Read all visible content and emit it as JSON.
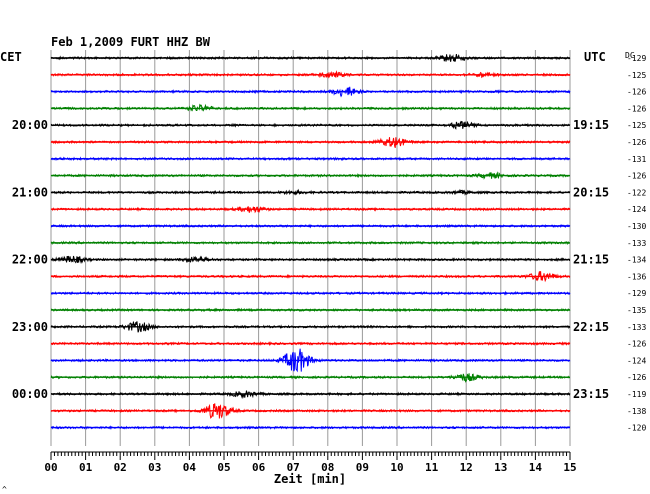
{
  "header": {
    "title": "Feb 1,2009   FURT HHZ BW",
    "left_zone": "CET",
    "right_zone": "UTC",
    "dc_label": "DC"
  },
  "footer": {
    "xlabel": "Zeit [min]",
    "corner_mark": "^"
  },
  "chart_data": {
    "type": "line",
    "title": "Feb 1,2009   FURT HHZ BW",
    "xlabel": "Zeit [min]",
    "xlim": [
      0,
      15
    ],
    "x_ticks": [
      "00",
      "01",
      "02",
      "03",
      "04",
      "05",
      "06",
      "07",
      "08",
      "09",
      "10",
      "11",
      "12",
      "13",
      "14",
      "15"
    ],
    "grid": true,
    "trace_colors": [
      "#000000",
      "#ff0000",
      "#0000ff",
      "#008000"
    ],
    "left_time_labels": [
      {
        "trace": 4,
        "label": "20:00"
      },
      {
        "trace": 8,
        "label": "21:00"
      },
      {
        "trace": 12,
        "label": "22:00"
      },
      {
        "trace": 16,
        "label": "23:00"
      },
      {
        "trace": 20,
        "label": "00:00"
      }
    ],
    "right_time_labels": [
      {
        "trace": 4,
        "label": "19:15"
      },
      {
        "trace": 8,
        "label": "20:15"
      },
      {
        "trace": 12,
        "label": "21:15"
      },
      {
        "trace": 16,
        "label": "22:15"
      },
      {
        "trace": 20,
        "label": "23:15"
      }
    ],
    "dc_offsets": [
      "-129",
      "-125",
      "-126",
      "-126",
      "-125",
      "-126",
      "-131",
      "-126",
      "-122",
      "-124",
      "-130",
      "-133",
      "-134",
      "-136",
      "-129",
      "-135",
      "-133",
      "-126",
      "-124",
      "-126",
      "-119",
      "-138",
      "-120"
    ],
    "events": [
      {
        "trace": 0,
        "minute": 11.6,
        "amplitude": 0.45
      },
      {
        "trace": 1,
        "minute": 8.1,
        "amplitude": 0.3
      },
      {
        "trace": 1,
        "minute": 12.5,
        "amplitude": 0.2
      },
      {
        "trace": 2,
        "minute": 8.5,
        "amplitude": 0.55
      },
      {
        "trace": 3,
        "minute": 4.3,
        "amplitude": 0.35
      },
      {
        "trace": 4,
        "minute": 11.9,
        "amplitude": 0.45
      },
      {
        "trace": 5,
        "minute": 9.9,
        "amplitude": 0.7
      },
      {
        "trace": 7,
        "minute": 12.7,
        "amplitude": 0.3
      },
      {
        "trace": 8,
        "minute": 7.0,
        "amplitude": 0.15
      },
      {
        "trace": 8,
        "minute": 11.9,
        "amplitude": 0.15
      },
      {
        "trace": 9,
        "minute": 5.8,
        "amplitude": 0.35
      },
      {
        "trace": 12,
        "minute": 0.6,
        "amplitude": 0.4
      },
      {
        "trace": 12,
        "minute": 4.2,
        "amplitude": 0.3
      },
      {
        "trace": 13,
        "minute": 14.2,
        "amplitude": 0.55
      },
      {
        "trace": 16,
        "minute": 2.5,
        "amplitude": 0.6
      },
      {
        "trace": 18,
        "minute": 7.1,
        "amplitude": 1.5
      },
      {
        "trace": 19,
        "minute": 12.0,
        "amplitude": 0.45
      },
      {
        "trace": 20,
        "minute": 5.6,
        "amplitude": 0.35
      },
      {
        "trace": 21,
        "minute": 4.8,
        "amplitude": 1.0
      }
    ]
  }
}
